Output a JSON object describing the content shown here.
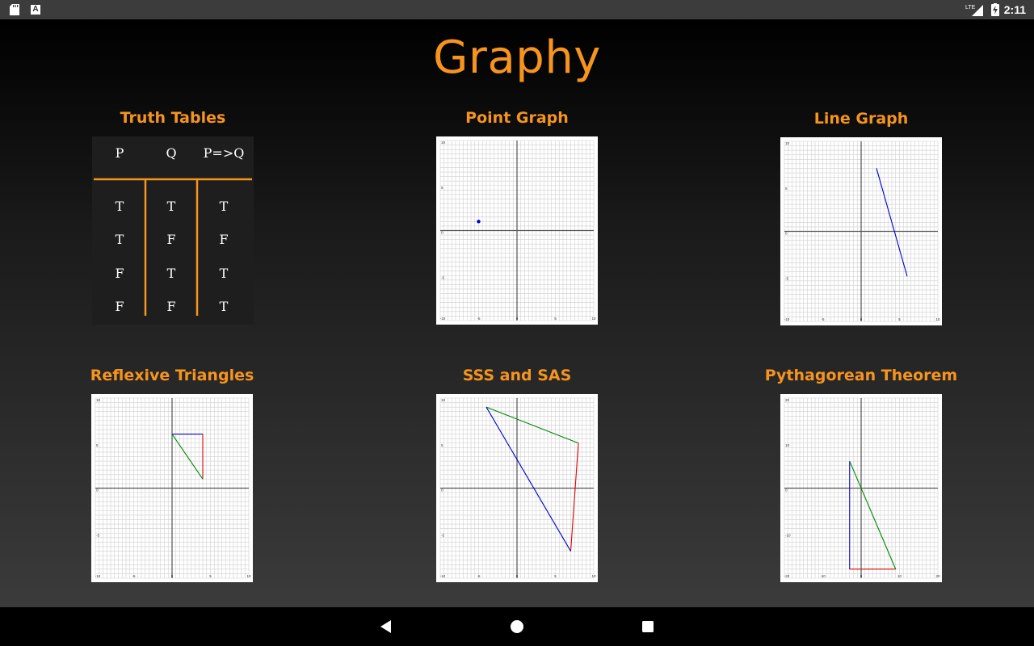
{
  "status_bar": {
    "time": "2:11",
    "network": "LTE",
    "icons": [
      "sd-card-icon",
      "a-icon",
      "signal-icon",
      "battery-charging-icon"
    ]
  },
  "app": {
    "title": "Graphy"
  },
  "tiles": [
    {
      "label": "Truth Tables",
      "table": {
        "headers": [
          "P",
          "Q",
          "P=>Q"
        ],
        "rows": [
          [
            "T",
            "T",
            "T"
          ],
          [
            "T",
            "F",
            "F"
          ],
          [
            "F",
            "T",
            "T"
          ],
          [
            "F",
            "F",
            "T"
          ]
        ]
      },
      "colors": {
        "background": "#1e1e1e",
        "rule": "#f7941d",
        "text": "#ffffff"
      }
    },
    {
      "label": "Point Graph",
      "graph": {
        "range": [
          -10,
          10
        ],
        "tick_labels": [
          "-10",
          "-5",
          "0",
          "5",
          "10"
        ],
        "point": [
          -5,
          1
        ],
        "point_color": "#0000cc"
      }
    },
    {
      "label": "Line Graph",
      "graph": {
        "range": [
          -10,
          10
        ],
        "tick_labels": [
          "-10",
          "-5",
          "0",
          "5",
          "10"
        ],
        "segment": [
          [
            2,
            7
          ],
          [
            6,
            -5
          ]
        ],
        "segment_color": "#0000cc"
      }
    },
    {
      "label": "Reflexive Triangles",
      "graph": {
        "range": [
          -10,
          10
        ],
        "tick_labels": [
          "-10",
          "-5",
          "0",
          "5",
          "10"
        ],
        "triangle": {
          "A": [
            0,
            6
          ],
          "B": [
            4,
            6
          ],
          "C": [
            4,
            1
          ]
        },
        "colors": [
          "#0000cc",
          "#e00000",
          "#008800"
        ]
      }
    },
    {
      "label": "SSS and SAS",
      "graph": {
        "range": [
          -10,
          10
        ],
        "tick_labels": [
          "-10",
          "-5",
          "0",
          "5",
          "10"
        ],
        "triangle": {
          "A": [
            -4,
            9
          ],
          "B": [
            8,
            5
          ],
          "C": [
            7,
            -7
          ]
        },
        "colors": [
          "#008800",
          "#e00000",
          "#0000cc"
        ]
      }
    },
    {
      "label": "Pythagorean Theorem",
      "graph": {
        "range": [
          -20,
          20
        ],
        "tick_labels": [
          "-20",
          "-10",
          "0",
          "10",
          "20"
        ],
        "triangle": {
          "A": [
            -3,
            6
          ],
          "B": [
            -3,
            -18
          ],
          "C": [
            9,
            -18
          ]
        },
        "colors": [
          "#0000cc",
          "#e00000",
          "#008800"
        ]
      }
    }
  ],
  "nav": {
    "buttons": [
      "back-button",
      "home-button",
      "recents-button"
    ]
  }
}
